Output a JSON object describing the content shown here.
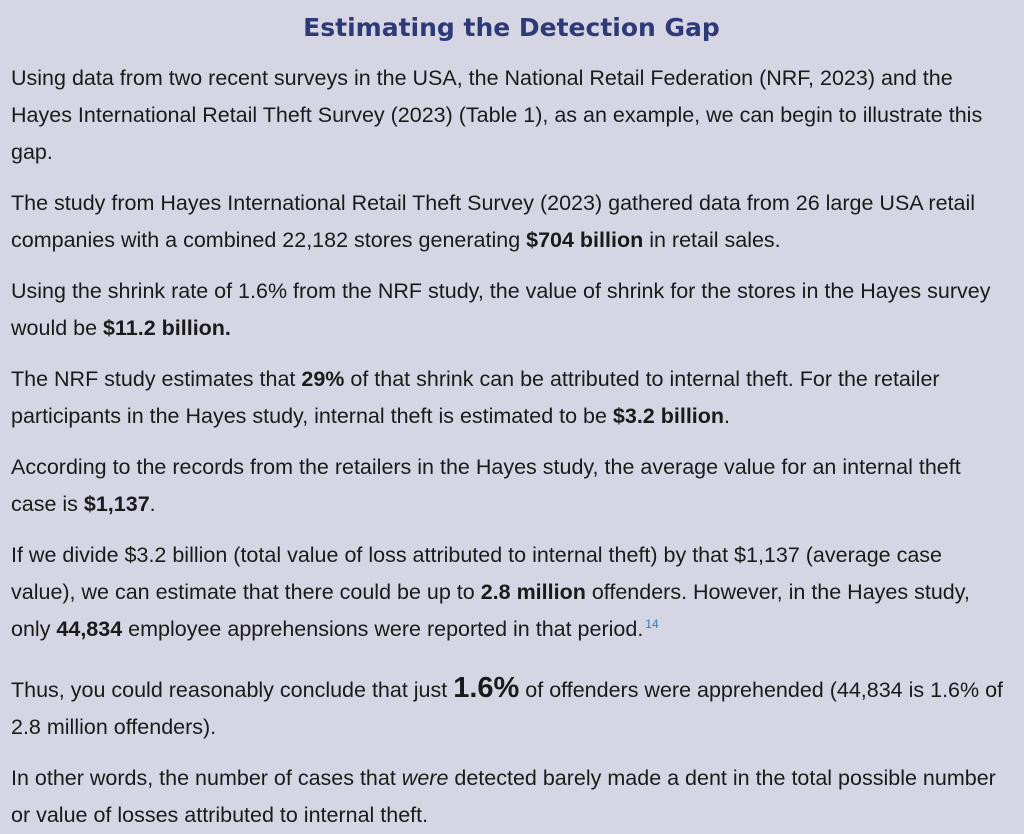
{
  "title": "Estimating the Detection Gap",
  "p1": "Using data from two recent surveys in the USA, the National Retail Federation (NRF, 2023) and the Hayes International Retail Theft Survey (2023) (Table 1), as an example, we can begin to illustrate this gap.",
  "p2": {
    "a": "The study from Hayes International Retail Theft Survey (2023) gathered data from 26 large USA retail companies with a combined 22,182 stores generating ",
    "b": "$704 billion",
    "c": " in retail sales."
  },
  "p3": {
    "a": "Using the shrink rate of 1.6% from the NRF study, the value of shrink for the stores in the Hayes survey would be ",
    "b": "$11.2 billion."
  },
  "p4": {
    "a": "The NRF study estimates that ",
    "b": "29%",
    "c": " of that shrink can be attributed to internal theft. For the retailer participants in the Hayes study, internal theft is estimated to be ",
    "d": "$3.2 billion",
    "e": "."
  },
  "p5": {
    "a": "According to the records from the retailers in the Hayes study, the average value for an internal theft case is ",
    "b": "$1,137",
    "c": "."
  },
  "p6": {
    "a": "If we divide $3.2 billion (total value of loss attributed to internal theft) by that $1,137 (average case value), we can estimate that there could be up to ",
    "b": "2.8 million",
    "c": " offenders. However, in the Hayes study, only ",
    "d": "44,834",
    "e": " employee apprehensions were reported in that period.",
    "footnote": "14"
  },
  "p7": {
    "a": "Thus, you could reasonably conclude that just ",
    "b": "1.6%",
    "c": " of offenders were apprehended (44,834 is 1.6% of 2.8 million offenders)."
  },
  "p8": {
    "a": "In other words, the number of cases that ",
    "b": "were",
    "c": " detected barely made a dent in the total possible number or value of losses attributed to internal theft."
  }
}
